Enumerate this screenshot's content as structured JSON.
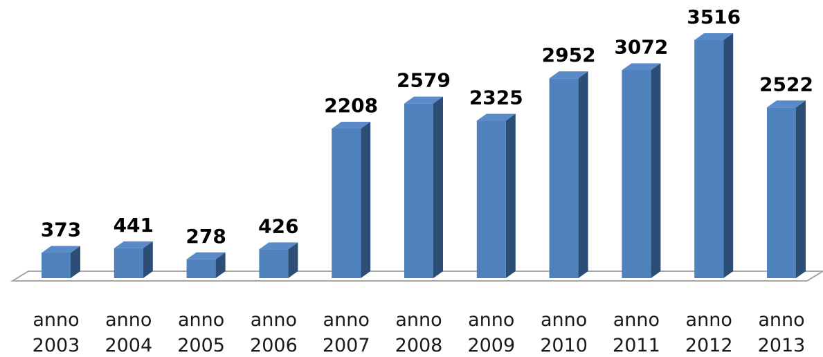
{
  "chart_data": {
    "type": "bar",
    "title": "",
    "xlabel": "",
    "ylabel": "",
    "categories": [
      [
        "anno",
        "2003"
      ],
      [
        "anno",
        "2004"
      ],
      [
        "anno",
        "2005"
      ],
      [
        "anno",
        "2006"
      ],
      [
        "anno",
        "2007"
      ],
      [
        "anno",
        "2008"
      ],
      [
        "anno",
        "2009"
      ],
      [
        "anno",
        "2010"
      ],
      [
        "anno",
        "2011"
      ],
      [
        "anno",
        "2012"
      ],
      [
        "anno",
        "2013"
      ]
    ],
    "values": [
      373,
      441,
      278,
      426,
      2208,
      2579,
      2325,
      2952,
      3072,
      3516,
      2522
    ],
    "ylim": [
      0,
      3516
    ],
    "grid": false,
    "legend": "none",
    "data_labels": true,
    "style": "3d-columns",
    "colors": {
      "bar_front": "#4f81bd",
      "bar_side": "#2c4d75",
      "bar_top": "#5b8ac9",
      "floor_line": "#a6a6a6"
    }
  }
}
